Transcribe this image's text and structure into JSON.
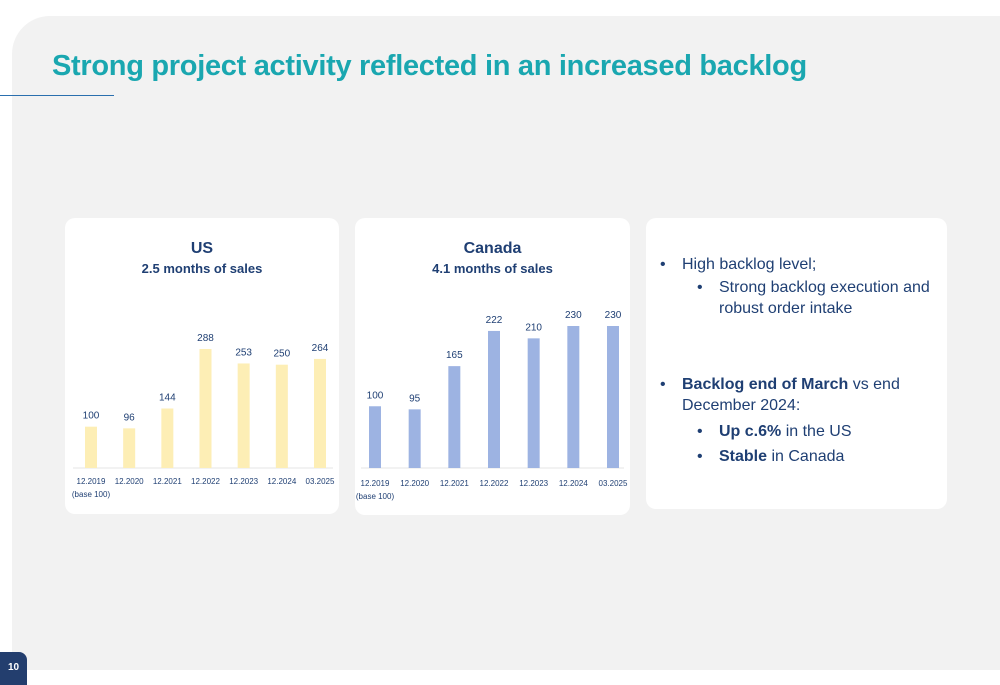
{
  "title": "Strong project activity reflected in an increased backlog",
  "page_number": "10",
  "colors": {
    "title": "#1aa7b0",
    "navy": "#1f3f73",
    "us_bar": "#fdeeb5",
    "canada_bar": "#9db3e2"
  },
  "chart_data": [
    {
      "type": "bar",
      "title": "US",
      "subtitle": "2.5 months of sales",
      "categories": [
        "12.2019",
        "12.2020",
        "12.2021",
        "12.2022",
        "12.2023",
        "12.2024",
        "03.2025"
      ],
      "category_notes": [
        "(base 100)",
        "",
        "",
        "",
        "",
        "",
        ""
      ],
      "values": [
        100,
        96,
        144,
        288,
        253,
        250,
        264
      ],
      "ylim": [
        0,
        288
      ],
      "grid": false,
      "bar_color": "#fdeeb5"
    },
    {
      "type": "bar",
      "title": "Canada",
      "subtitle": "4.1 months of sales",
      "categories": [
        "12.2019",
        "12.2020",
        "12.2021",
        "12.2022",
        "12.2023",
        "12.2024",
        "03.2025"
      ],
      "category_notes": [
        "(base 100)",
        "",
        "",
        "",
        "",
        "",
        ""
      ],
      "values": [
        100,
        95,
        165,
        222,
        210,
        230,
        230
      ],
      "ylim": [
        0,
        230
      ],
      "grid": false,
      "bar_color": "#9db3e2"
    }
  ],
  "bullets": {
    "b1": "High backlog level;",
    "b2": "Strong backlog execution and robust order intake",
    "b3_bold": "Backlog end of March",
    "b3_rest": " vs end December 2024:",
    "b4_bold": "Up c.6%",
    "b4_rest": " in the US",
    "b5_bold": "Stable",
    "b5_rest": " in Canada",
    "marker": "•"
  }
}
